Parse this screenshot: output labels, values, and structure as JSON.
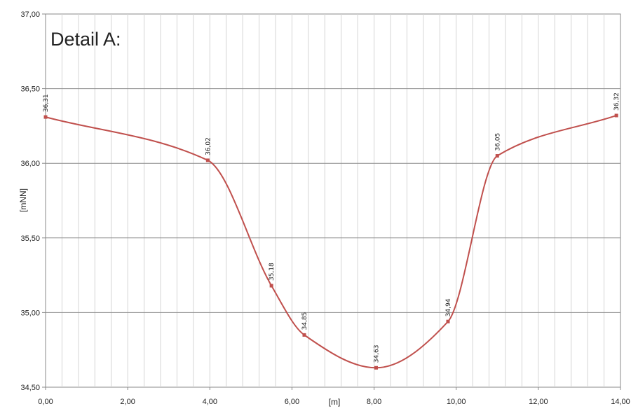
{
  "chart_data": {
    "type": "line",
    "title": "Detail A:",
    "xlabel": "[m]",
    "ylabel": "[mNN]",
    "xlim": [
      0,
      14
    ],
    "ylim": [
      34.5,
      37
    ],
    "x_ticks": [
      "0,00",
      "2,00",
      "4,00",
      "6,00",
      "8,00",
      "10,00",
      "12,00",
      "14,00"
    ],
    "y_ticks": [
      "34,50",
      "35,00",
      "35,50",
      "36,00",
      "36,50",
      "37,00"
    ],
    "minor_x_step": 0.4,
    "grid": true,
    "series": [
      {
        "color": "#c0504d",
        "smooth": true,
        "points": [
          {
            "x": 0.0,
            "y": 36.31,
            "label": "36,31"
          },
          {
            "x": 3.95,
            "y": 36.02,
            "label": "36,02"
          },
          {
            "x": 5.5,
            "y": 35.18,
            "label": "35,18"
          },
          {
            "x": 6.3,
            "y": 34.85,
            "label": "34,85"
          },
          {
            "x": 8.05,
            "y": 34.63,
            "label": "34,63"
          },
          {
            "x": 9.8,
            "y": 34.94,
            "label": "34,94"
          },
          {
            "x": 11.0,
            "y": 36.05,
            "label": "36,05"
          },
          {
            "x": 13.9,
            "y": 36.32,
            "label": "36,32"
          }
        ]
      }
    ]
  }
}
